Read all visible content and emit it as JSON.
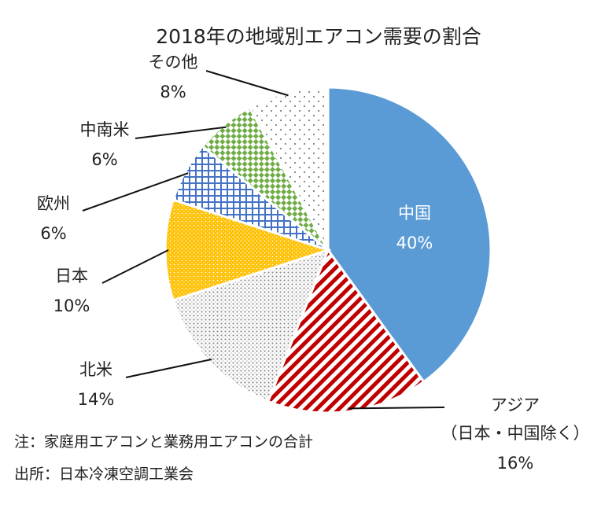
{
  "chart_data": {
    "type": "pie",
    "title": "2018年の地域別エアコン需要の割合",
    "slices": [
      {
        "label": "中国",
        "percent_label": "40%",
        "value": 40,
        "color": "#5b9bd5",
        "pattern": "solid"
      },
      {
        "label": "アジア（日本・中国除く）",
        "label_lines": [
          "アジア",
          "（日本・中国除く）"
        ],
        "percent_label": "16%",
        "value": 16,
        "color": "#c00000",
        "pattern": "diagonal-stripes"
      },
      {
        "label": "北米",
        "percent_label": "14%",
        "value": 14,
        "color": "#a6a6a6",
        "pattern": "dots"
      },
      {
        "label": "日本",
        "percent_label": "10%",
        "value": 10,
        "color": "#ffc000",
        "pattern": "dots"
      },
      {
        "label": "欧州",
        "percent_label": "6%",
        "value": 6,
        "color": "#4472c4",
        "pattern": "grid"
      },
      {
        "label": "中南米",
        "percent_label": "6%",
        "value": 6,
        "color": "#70ad47",
        "pattern": "checker"
      },
      {
        "label": "その他",
        "percent_label": "8%",
        "value": 8,
        "color": "#a6a6a6",
        "pattern": "sparse-dots"
      }
    ],
    "notes": [
      "注：家庭用エアコンと業務用エアコンの合計",
      "出所：日本冷凍空調工業会"
    ]
  }
}
